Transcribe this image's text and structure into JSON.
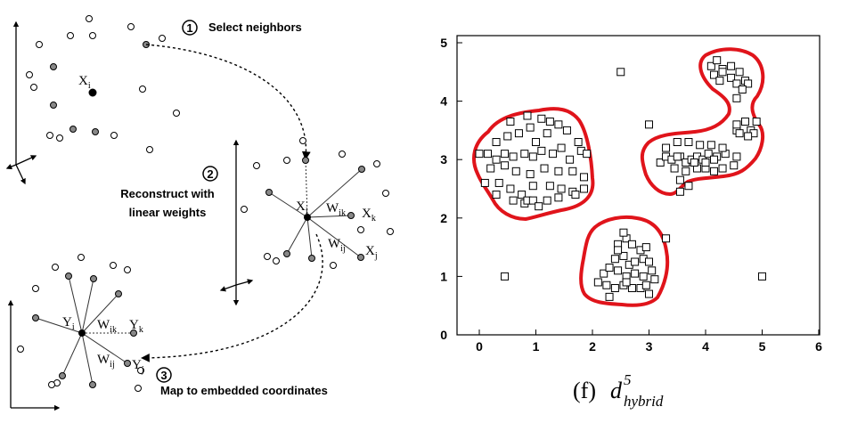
{
  "left_diagram": {
    "step1": {
      "number": "1",
      "label": "Select neighbors"
    },
    "step2": {
      "number": "2",
      "label_line1": "Reconstruct with",
      "label_line2": "linear weights"
    },
    "step3": {
      "number": "3",
      "label": "Map to embedded coordinates"
    },
    "symbols": {
      "x_i": {
        "base": "X",
        "sub": "i"
      },
      "x_k": {
        "base": "X",
        "sub": "k"
      },
      "x_j": {
        "base": "X",
        "sub": "j"
      },
      "w_ik": {
        "base": "W",
        "sub": "ik"
      },
      "w_ij": {
        "base": "W",
        "sub": "ij"
      },
      "y_i": {
        "base": "Y",
        "sub": "i"
      },
      "y_k": {
        "base": "Y",
        "sub": "k"
      },
      "y_j": {
        "base": "Y",
        "sub": "j"
      }
    }
  },
  "chart_data": {
    "type": "scatter",
    "x_ticks": [
      "0",
      "1",
      "2",
      "3",
      "4",
      "5",
      "6"
    ],
    "y_ticks": [
      "0",
      "1",
      "2",
      "3",
      "4",
      "5"
    ],
    "xlim": [
      -0.4,
      6
    ],
    "ylim": [
      0,
      5.1
    ],
    "marker": "open-square",
    "contour_color": "#e0141b",
    "caption": {
      "prefix": "(f)",
      "main": "d",
      "superscript": "5",
      "subscript": "hybrid"
    },
    "points": [
      [
        0.0,
        3.1
      ],
      [
        0.15,
        3.1
      ],
      [
        0.3,
        3.0
      ],
      [
        0.45,
        3.1
      ],
      [
        0.6,
        3.05
      ],
      [
        0.8,
        3.1
      ],
      [
        0.95,
        3.05
      ],
      [
        1.1,
        3.15
      ],
      [
        1.3,
        3.1
      ],
      [
        1.45,
        3.2
      ],
      [
        1.6,
        3.0
      ],
      [
        1.8,
        3.15
      ],
      [
        0.3,
        3.3
      ],
      [
        0.5,
        3.4
      ],
      [
        0.7,
        3.45
      ],
      [
        0.9,
        3.55
      ],
      [
        1.0,
        3.3
      ],
      [
        1.2,
        3.45
      ],
      [
        1.4,
        3.6
      ],
      [
        1.55,
        3.5
      ],
      [
        1.75,
        3.3
      ],
      [
        1.9,
        3.1
      ],
      [
        0.55,
        3.65
      ],
      [
        0.85,
        3.75
      ],
      [
        1.1,
        3.7
      ],
      [
        1.25,
        3.65
      ],
      [
        0.2,
        2.85
      ],
      [
        0.45,
        2.9
      ],
      [
        0.65,
        2.8
      ],
      [
        0.9,
        2.75
      ],
      [
        1.15,
        2.85
      ],
      [
        1.4,
        2.8
      ],
      [
        1.65,
        2.8
      ],
      [
        1.85,
        2.7
      ],
      [
        0.35,
        2.6
      ],
      [
        0.55,
        2.5
      ],
      [
        0.75,
        2.4
      ],
      [
        0.95,
        2.55
      ],
      [
        1.25,
        2.55
      ],
      [
        1.45,
        2.5
      ],
      [
        1.65,
        2.45
      ],
      [
        1.85,
        2.5
      ],
      [
        0.1,
        2.6
      ],
      [
        0.3,
        2.4
      ],
      [
        0.6,
        2.3
      ],
      [
        0.8,
        2.25
      ],
      [
        0.85,
        2.3
      ],
      [
        0.95,
        2.3
      ],
      [
        1.05,
        2.2
      ],
      [
        1.2,
        2.3
      ],
      [
        1.4,
        2.35
      ],
      [
        1.7,
        2.4
      ],
      [
        3.2,
        2.95
      ],
      [
        3.3,
        3.05
      ],
      [
        3.4,
        3.0
      ],
      [
        3.55,
        3.05
      ],
      [
        3.65,
        2.95
      ],
      [
        3.75,
        3.0
      ],
      [
        3.85,
        3.05
      ],
      [
        3.95,
        3.0
      ],
      [
        4.05,
        3.1
      ],
      [
        4.2,
        3.05
      ],
      [
        4.35,
        3.1
      ],
      [
        4.55,
        3.05
      ],
      [
        3.3,
        3.2
      ],
      [
        3.5,
        3.3
      ],
      [
        3.7,
        3.3
      ],
      [
        3.9,
        3.25
      ],
      [
        4.1,
        3.25
      ],
      [
        4.3,
        3.2
      ],
      [
        3.45,
        2.85
      ],
      [
        3.65,
        2.8
      ],
      [
        3.85,
        2.85
      ],
      [
        4.0,
        2.85
      ],
      [
        4.15,
        2.8
      ],
      [
        4.3,
        2.85
      ],
      [
        3.55,
        2.65
      ],
      [
        3.7,
        2.55
      ],
      [
        3.55,
        2.45
      ],
      [
        3.0,
        3.6
      ],
      [
        3.5,
        3.05
      ],
      [
        3.8,
        2.95
      ],
      [
        4.0,
        2.95
      ],
      [
        4.15,
        3.0
      ],
      [
        4.5,
        2.9
      ],
      [
        4.55,
        3.5
      ],
      [
        4.6,
        3.45
      ],
      [
        4.7,
        3.65
      ],
      [
        4.8,
        3.5
      ],
      [
        4.85,
        3.45
      ],
      [
        4.9,
        3.65
      ],
      [
        4.55,
        3.6
      ],
      [
        4.75,
        3.4
      ],
      [
        4.1,
        4.6
      ],
      [
        4.2,
        4.7
      ],
      [
        4.3,
        4.55
      ],
      [
        4.45,
        4.6
      ],
      [
        4.6,
        4.5
      ],
      [
        4.15,
        4.45
      ],
      [
        4.25,
        4.35
      ],
      [
        4.45,
        4.4
      ],
      [
        4.55,
        4.3
      ],
      [
        4.7,
        4.35
      ],
      [
        4.75,
        4.3
      ],
      [
        4.3,
        4.5
      ],
      [
        4.55,
        4.05
      ],
      [
        4.65,
        4.2
      ],
      [
        2.45,
        1.55
      ],
      [
        2.6,
        1.65
      ],
      [
        2.7,
        1.55
      ],
      [
        2.55,
        1.75
      ],
      [
        2.85,
        1.45
      ],
      [
        2.95,
        1.5
      ],
      [
        2.4,
        1.3
      ],
      [
        2.55,
        1.35
      ],
      [
        2.65,
        1.2
      ],
      [
        2.75,
        1.25
      ],
      [
        2.9,
        1.3
      ],
      [
        3.0,
        1.25
      ],
      [
        2.2,
        1.05
      ],
      [
        2.3,
        1.15
      ],
      [
        2.45,
        1.1
      ],
      [
        2.6,
        1.0
      ],
      [
        2.75,
        1.05
      ],
      [
        2.9,
        1.0
      ],
      [
        3.05,
        1.1
      ],
      [
        3.1,
        0.95
      ],
      [
        2.1,
        0.9
      ],
      [
        2.25,
        0.85
      ],
      [
        2.4,
        0.8
      ],
      [
        2.55,
        0.85
      ],
      [
        2.7,
        0.8
      ],
      [
        2.85,
        0.8
      ],
      [
        2.95,
        0.85
      ],
      [
        3.0,
        0.7
      ],
      [
        2.3,
        0.65
      ],
      [
        2.6,
        0.9
      ],
      [
        2.45,
        1.45
      ],
      [
        2.5,
        4.5
      ],
      [
        0.45,
        1.0
      ],
      [
        3.3,
        1.65
      ],
      [
        5.0,
        1.0
      ]
    ]
  }
}
